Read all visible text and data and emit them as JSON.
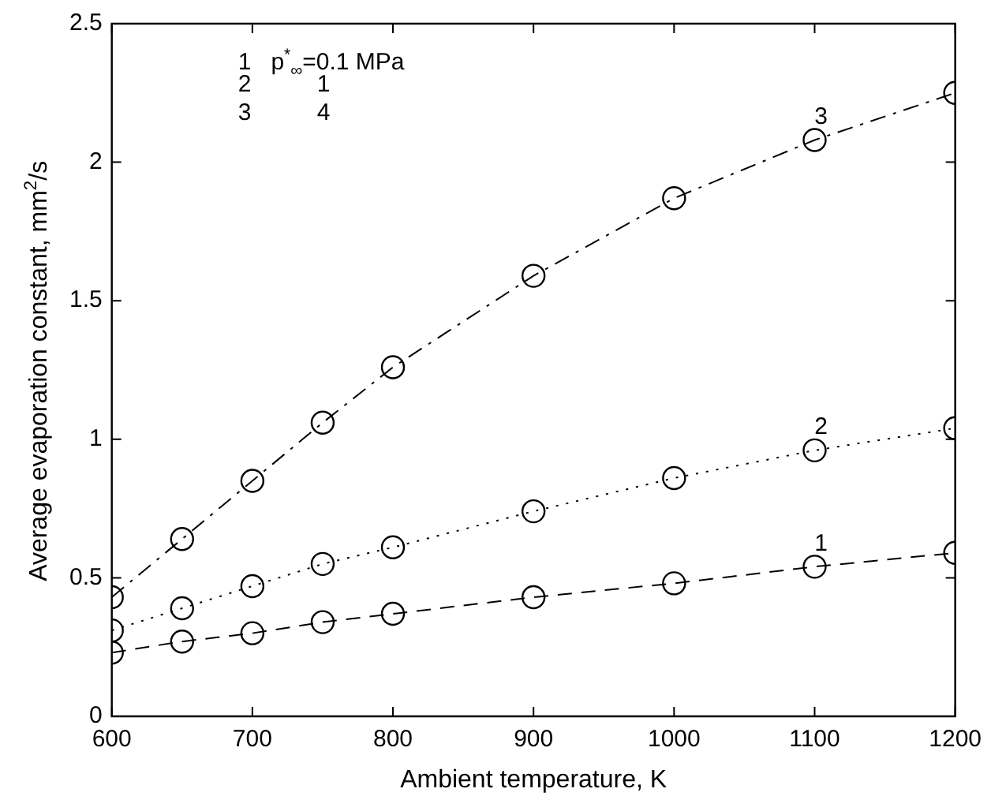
{
  "chart_data": {
    "type": "line",
    "xlabel": "Ambient temperature, K",
    "ylabel": "Average evaporation constant, mm$^{2}$/s",
    "x": [
      600,
      650,
      700,
      750,
      800,
      900,
      1000,
      1100,
      1200
    ],
    "xlim": [
      600,
      1200
    ],
    "xticks": [
      600,
      700,
      800,
      900,
      1000,
      1100,
      1200
    ],
    "ylim": [
      0,
      2.5
    ],
    "yticks": [
      0,
      0.5,
      1,
      1.5,
      2,
      2.5
    ],
    "grid": false,
    "legend": false,
    "marker": "circle",
    "annotations": [
      "1   p$^{*}$$_{∞}$=0.1 MPa",
      "2          1",
      "3          4"
    ],
    "series": [
      {
        "name": "1",
        "color": "#000000",
        "line_style": "dashed",
        "values": [
          0.23,
          0.27,
          0.3,
          0.34,
          0.37,
          0.43,
          0.48,
          0.54,
          0.59
        ]
      },
      {
        "name": "2",
        "color": "#000000",
        "line_style": "dotted",
        "values": [
          0.31,
          0.39,
          0.47,
          0.55,
          0.61,
          0.74,
          0.86,
          0.96,
          1.04
        ]
      },
      {
        "name": "3",
        "color": "#000000",
        "line_style": "dashdot",
        "values": [
          0.43,
          0.64,
          0.85,
          1.06,
          1.26,
          1.59,
          1.87,
          2.08,
          2.25
        ]
      }
    ]
  }
}
